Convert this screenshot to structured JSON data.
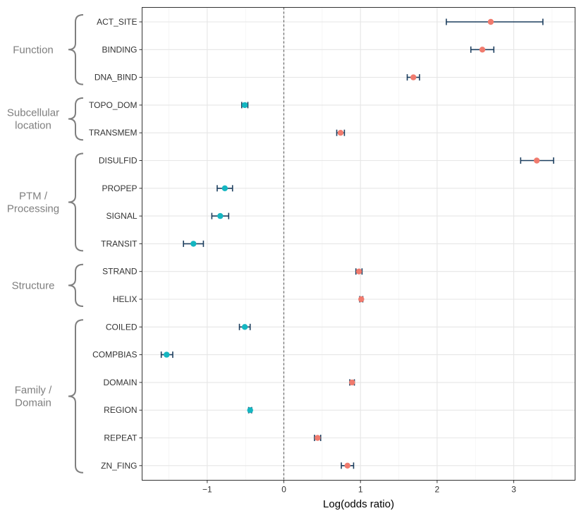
{
  "chart_data": {
    "type": "forest",
    "title": "",
    "xlabel": "Log(odds ratio)",
    "ylabel": "",
    "xlim": [
      -1.85,
      3.8
    ],
    "xticks": [
      -1,
      0,
      1,
      2,
      3
    ],
    "xtick_labels": [
      "−1",
      "0",
      "1",
      "2",
      "3"
    ],
    "reference_line": 0,
    "colors": {
      "positive": "#f07b6e",
      "negative": "#14b6c1",
      "error_bar": "#1d3f5f",
      "bracket": "#7f7f7f"
    },
    "groups": [
      {
        "name": "Function",
        "label_lines": [
          "Function"
        ],
        "rows": [
          {
            "label": "ACT_SITE",
            "value": 2.7,
            "lower": 2.12,
            "upper": 3.38
          },
          {
            "label": "BINDING",
            "value": 2.59,
            "lower": 2.44,
            "upper": 2.74
          },
          {
            "label": "DNA_BIND",
            "value": 1.69,
            "lower": 1.61,
            "upper": 1.77
          }
        ]
      },
      {
        "name": "Subcellular location",
        "label_lines": [
          "Subcellular",
          "location"
        ],
        "rows": [
          {
            "label": "TOPO_DOM",
            "value": -0.51,
            "lower": -0.55,
            "upper": -0.47
          },
          {
            "label": "TRANSMEM",
            "value": 0.74,
            "lower": 0.69,
            "upper": 0.79
          }
        ]
      },
      {
        "name": "PTM / Processing",
        "label_lines": [
          "PTM /",
          "Processing"
        ],
        "rows": [
          {
            "label": "DISULFID",
            "value": 3.3,
            "lower": 3.09,
            "upper": 3.52
          },
          {
            "label": "PROPEP",
            "value": -0.77,
            "lower": -0.87,
            "upper": -0.67
          },
          {
            "label": "SIGNAL",
            "value": -0.83,
            "lower": -0.94,
            "upper": -0.72
          },
          {
            "label": "TRANSIT",
            "value": -1.18,
            "lower": -1.31,
            "upper": -1.05
          }
        ]
      },
      {
        "name": "Structure",
        "label_lines": [
          "Structure"
        ],
        "rows": [
          {
            "label": "STRAND",
            "value": 0.98,
            "lower": 0.94,
            "upper": 1.02
          },
          {
            "label": "HELIX",
            "value": 1.01,
            "lower": 0.99,
            "upper": 1.03
          }
        ]
      },
      {
        "name": "Family / Domain",
        "label_lines": [
          "Family /",
          "Domain"
        ],
        "rows": [
          {
            "label": "COILED",
            "value": -0.51,
            "lower": -0.58,
            "upper": -0.44
          },
          {
            "label": "COMPBIAS",
            "value": -1.53,
            "lower": -1.6,
            "upper": -1.45
          },
          {
            "label": "DOMAIN",
            "value": 0.89,
            "lower": 0.86,
            "upper": 0.92
          },
          {
            "label": "REGION",
            "value": -0.44,
            "lower": -0.46,
            "upper": -0.42
          },
          {
            "label": "REPEAT",
            "value": 0.44,
            "lower": 0.4,
            "upper": 0.48
          },
          {
            "label": "ZN_FING",
            "value": 0.83,
            "lower": 0.75,
            "upper": 0.91
          }
        ]
      }
    ]
  }
}
